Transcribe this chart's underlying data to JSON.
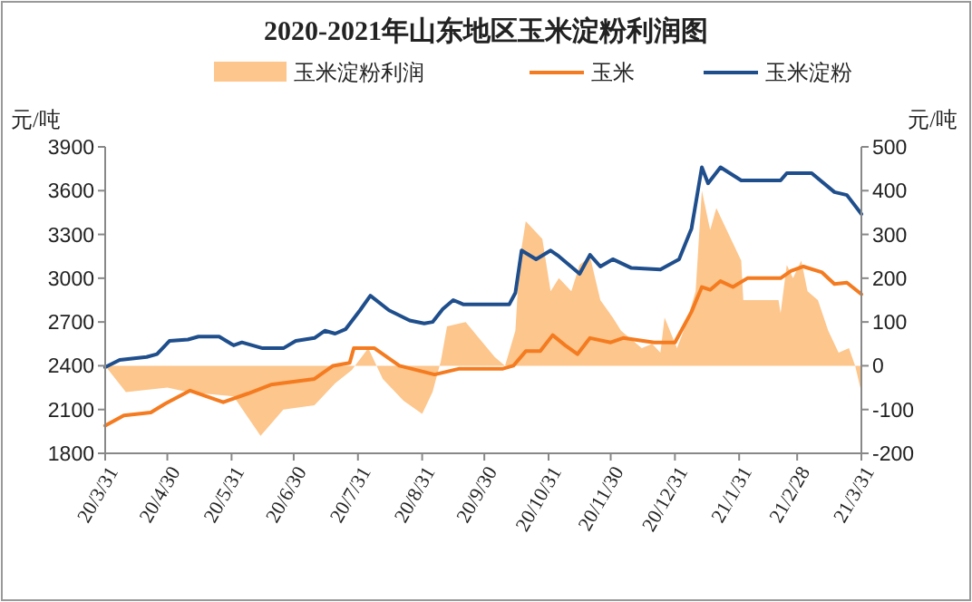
{
  "chart_data": {
    "type": "line",
    "title": "2020-2021年山东地区玉米淀粉利润图",
    "ylabel": "元/吨",
    "y2label": "元/吨",
    "xlim": [
      "2020-03-31",
      "2021-03-31"
    ],
    "xticks": [
      {
        "value": "2020-03-31",
        "label": "20/3/31"
      },
      {
        "value": "2020-04-30",
        "label": "20/4/30"
      },
      {
        "value": "2020-05-31",
        "label": "20/5/31"
      },
      {
        "value": "2020-06-30",
        "label": "20/6/30"
      },
      {
        "value": "2020-07-31",
        "label": "20/7/31"
      },
      {
        "value": "2020-08-31",
        "label": "20/8/31"
      },
      {
        "value": "2020-09-30",
        "label": "20/9/30"
      },
      {
        "value": "2020-10-31",
        "label": "20/10/31"
      },
      {
        "value": "2020-11-30",
        "label": "20/11/30"
      },
      {
        "value": "2020-12-31",
        "label": "20/12/31"
      },
      {
        "value": "2021-01-31",
        "label": "21/1/31"
      },
      {
        "value": "2021-02-28",
        "label": "21/2/28"
      },
      {
        "value": "2021-03-31",
        "label": "21/3/31"
      }
    ],
    "ylim": [
      1800,
      3900
    ],
    "yticks": [
      1800,
      2100,
      2400,
      2700,
      3000,
      3300,
      3600,
      3900
    ],
    "y2lim": [
      -200,
      500
    ],
    "y2ticks": [
      -200,
      -100,
      0,
      100,
      200,
      300,
      400,
      500
    ],
    "legend": "top",
    "grid": false,
    "series": [
      {
        "name": "玉米淀粉利润",
        "type": "area",
        "axis": "y2",
        "color": "#fdc68c",
        "x": [
          "2020-03-31",
          "2020-04-05",
          "2020-04-10",
          "2020-04-30",
          "2020-05-10",
          "2020-06-01",
          "2020-06-14",
          "2020-06-25",
          "2020-07-10",
          "2020-07-20",
          "2020-07-28",
          "2020-08-05",
          "2020-08-12",
          "2020-08-22",
          "2020-08-31",
          "2020-09-05",
          "2020-09-09",
          "2020-09-12",
          "2020-09-21",
          "2020-09-28",
          "2020-10-05",
          "2020-10-10",
          "2020-10-15",
          "2020-10-17",
          "2020-10-20",
          "2020-10-28",
          "2020-11-01",
          "2020-11-05",
          "2020-11-11",
          "2020-11-15",
          "2020-11-20",
          "2020-11-25",
          "2020-12-01",
          "2020-12-05",
          "2020-12-15",
          "2020-12-20",
          "2020-12-24",
          "2020-12-26",
          "2021-01-01",
          "2021-01-05",
          "2021-01-10",
          "2021-01-13",
          "2021-01-17",
          "2021-01-20",
          "2021-01-25",
          "2021-02-01",
          "2021-02-02",
          "2021-02-19",
          "2021-02-20",
          "2021-02-23",
          "2021-02-26",
          "2021-03-02",
          "2021-03-05",
          "2021-03-10",
          "2021-03-15",
          "2021-03-20",
          "2021-03-25",
          "2021-03-28",
          "2021-03-31"
        ],
        "values": [
          0,
          -30,
          -60,
          -50,
          -60,
          -70,
          -160,
          -100,
          -90,
          -40,
          -10,
          40,
          -30,
          -80,
          -110,
          -60,
          10,
          90,
          100,
          60,
          20,
          0,
          80,
          240,
          330,
          290,
          170,
          200,
          170,
          230,
          250,
          150,
          110,
          80,
          40,
          50,
          30,
          110,
          40,
          90,
          170,
          400,
          310,
          360,
          310,
          240,
          150,
          150,
          120,
          230,
          200,
          240,
          170,
          150,
          80,
          30,
          40,
          0,
          -60
        ]
      },
      {
        "name": "玉米",
        "color": "#f47b20",
        "x": [
          "2020-03-31",
          "2020-04-09",
          "2020-04-22",
          "2020-04-29",
          "2020-05-11",
          "2020-05-27",
          "2020-06-08",
          "2020-06-19",
          "2020-07-10",
          "2020-07-19",
          "2020-07-27",
          "2020-07-29",
          "2020-08-08",
          "2020-08-20",
          "2020-09-06",
          "2020-09-18",
          "2020-10-09",
          "2020-10-14",
          "2020-10-20",
          "2020-10-27",
          "2020-11-02",
          "2020-11-08",
          "2020-11-14",
          "2020-11-20",
          "2020-11-30",
          "2020-12-06",
          "2020-12-21",
          "2020-12-31",
          "2021-01-08",
          "2021-01-13",
          "2021-01-17",
          "2021-01-22",
          "2021-01-28",
          "2021-02-04",
          "2021-02-20",
          "2021-02-25",
          "2021-03-03",
          "2021-03-12",
          "2021-03-18",
          "2021-03-24",
          "2021-03-31"
        ],
        "values": [
          1990,
          2060,
          2080,
          2140,
          2230,
          2150,
          2210,
          2270,
          2310,
          2400,
          2420,
          2520,
          2520,
          2400,
          2340,
          2380,
          2380,
          2400,
          2500,
          2500,
          2610,
          2540,
          2480,
          2590,
          2560,
          2590,
          2560,
          2560,
          2770,
          2940,
          2920,
          2980,
          2940,
          3000,
          3000,
          3050,
          3080,
          3040,
          2960,
          2970,
          2890
        ]
      },
      {
        "name": "玉米淀粉",
        "color": "#1f4e8c",
        "x": [
          "2020-03-31",
          "2020-04-07",
          "2020-04-20",
          "2020-04-25",
          "2020-05-01",
          "2020-05-10",
          "2020-05-15",
          "2020-05-25",
          "2020-06-01",
          "2020-06-05",
          "2020-06-15",
          "2020-06-25",
          "2020-07-01",
          "2020-07-10",
          "2020-07-15",
          "2020-07-20",
          "2020-07-25",
          "2020-08-01",
          "2020-08-06",
          "2020-08-15",
          "2020-08-25",
          "2020-09-01",
          "2020-09-05",
          "2020-09-10",
          "2020-09-15",
          "2020-09-20",
          "2020-10-12",
          "2020-10-15",
          "2020-10-18",
          "2020-10-25",
          "2020-11-01",
          "2020-11-05",
          "2020-11-15",
          "2020-11-20",
          "2020-11-25",
          "2020-12-01",
          "2020-12-10",
          "2020-12-24",
          "2021-01-02",
          "2021-01-08",
          "2021-01-13",
          "2021-01-16",
          "2021-01-22",
          "2021-02-01",
          "2021-02-20",
          "2021-02-23",
          "2021-03-07",
          "2021-03-18",
          "2021-03-24",
          "2021-03-31"
        ],
        "values": [
          2390,
          2440,
          2460,
          2480,
          2570,
          2580,
          2600,
          2600,
          2540,
          2560,
          2520,
          2520,
          2570,
          2590,
          2640,
          2620,
          2650,
          2780,
          2880,
          2780,
          2710,
          2690,
          2700,
          2790,
          2850,
          2820,
          2820,
          2900,
          3190,
          3130,
          3190,
          3150,
          3030,
          3160,
          3080,
          3130,
          3070,
          3060,
          3130,
          3340,
          3760,
          3650,
          3760,
          3670,
          3670,
          3720,
          3720,
          3590,
          3570,
          3440
        ]
      }
    ]
  }
}
